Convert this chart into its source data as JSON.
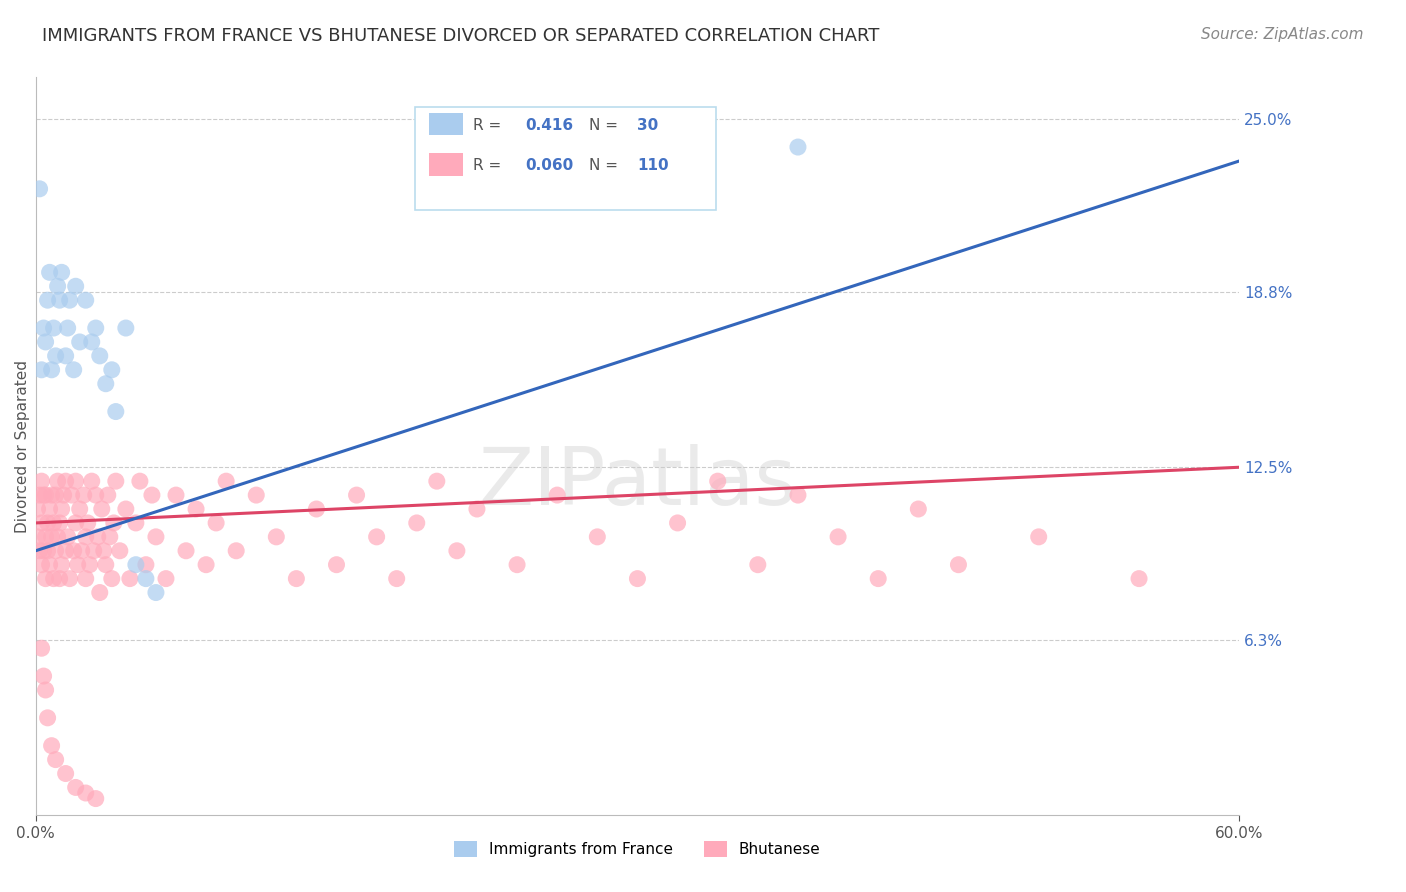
{
  "title": "IMMIGRANTS FROM FRANCE VS BHUTANESE DIVORCED OR SEPARATED CORRELATION CHART",
  "source": "Source: ZipAtlas.com",
  "ylabel": "Divorced or Separated",
  "xlim": [
    0.0,
    0.6
  ],
  "ylim": [
    0.0,
    0.265
  ],
  "ytick_positions": [
    0.063,
    0.125,
    0.188,
    0.25
  ],
  "ytick_labels": [
    "6.3%",
    "12.5%",
    "18.8%",
    "25.0%"
  ],
  "grid_color": "#cccccc",
  "background_color": "#ffffff",
  "series": [
    {
      "name": "Immigrants from France",
      "R": 0.416,
      "N": 30,
      "color": "#aaccee",
      "line_color": "#3366bb",
      "x": [
        0.002,
        0.003,
        0.004,
        0.005,
        0.006,
        0.007,
        0.008,
        0.009,
        0.01,
        0.011,
        0.012,
        0.013,
        0.015,
        0.016,
        0.017,
        0.019,
        0.02,
        0.022,
        0.025,
        0.028,
        0.03,
        0.032,
        0.035,
        0.038,
        0.04,
        0.045,
        0.05,
        0.055,
        0.06,
        0.38
      ],
      "y": [
        0.225,
        0.16,
        0.175,
        0.17,
        0.185,
        0.195,
        0.16,
        0.175,
        0.165,
        0.19,
        0.185,
        0.195,
        0.165,
        0.175,
        0.185,
        0.16,
        0.19,
        0.17,
        0.185,
        0.17,
        0.175,
        0.165,
        0.155,
        0.16,
        0.145,
        0.175,
        0.09,
        0.085,
        0.08,
        0.24
      ],
      "trend_x": [
        0.0,
        0.6
      ],
      "trend_y": [
        0.095,
        0.235
      ]
    },
    {
      "name": "Bhutanese",
      "R": 0.06,
      "N": 110,
      "color": "#ffaabb",
      "line_color": "#dd4466",
      "x": [
        0.001,
        0.001,
        0.002,
        0.002,
        0.003,
        0.003,
        0.003,
        0.004,
        0.004,
        0.005,
        0.005,
        0.005,
        0.006,
        0.006,
        0.007,
        0.007,
        0.008,
        0.008,
        0.009,
        0.009,
        0.01,
        0.01,
        0.011,
        0.011,
        0.012,
        0.012,
        0.013,
        0.013,
        0.014,
        0.015,
        0.015,
        0.016,
        0.017,
        0.018,
        0.019,
        0.02,
        0.02,
        0.021,
        0.022,
        0.023,
        0.024,
        0.025,
        0.025,
        0.026,
        0.027,
        0.028,
        0.029,
        0.03,
        0.031,
        0.032,
        0.033,
        0.034,
        0.035,
        0.036,
        0.037,
        0.038,
        0.039,
        0.04,
        0.042,
        0.045,
        0.047,
        0.05,
        0.052,
        0.055,
        0.058,
        0.06,
        0.065,
        0.07,
        0.075,
        0.08,
        0.085,
        0.09,
        0.095,
        0.1,
        0.11,
        0.12,
        0.13,
        0.14,
        0.15,
        0.16,
        0.17,
        0.18,
        0.19,
        0.2,
        0.21,
        0.22,
        0.24,
        0.26,
        0.28,
        0.3,
        0.32,
        0.34,
        0.36,
        0.38,
        0.4,
        0.42,
        0.44,
        0.46,
        0.5,
        0.55,
        0.003,
        0.004,
        0.005,
        0.006,
        0.008,
        0.01,
        0.015,
        0.02,
        0.025,
        0.03
      ],
      "y": [
        0.11,
        0.1,
        0.115,
        0.095,
        0.105,
        0.09,
        0.12,
        0.095,
        0.115,
        0.1,
        0.085,
        0.115,
        0.105,
        0.095,
        0.11,
        0.09,
        0.1,
        0.115,
        0.085,
        0.105,
        0.115,
        0.095,
        0.1,
        0.12,
        0.085,
        0.105,
        0.11,
        0.09,
        0.115,
        0.095,
        0.12,
        0.1,
        0.085,
        0.115,
        0.095,
        0.105,
        0.12,
        0.09,
        0.11,
        0.095,
        0.115,
        0.1,
        0.085,
        0.105,
        0.09,
        0.12,
        0.095,
        0.115,
        0.1,
        0.08,
        0.11,
        0.095,
        0.09,
        0.115,
        0.1,
        0.085,
        0.105,
        0.12,
        0.095,
        0.11,
        0.085,
        0.105,
        0.12,
        0.09,
        0.115,
        0.1,
        0.085,
        0.115,
        0.095,
        0.11,
        0.09,
        0.105,
        0.12,
        0.095,
        0.115,
        0.1,
        0.085,
        0.11,
        0.09,
        0.115,
        0.1,
        0.085,
        0.105,
        0.12,
        0.095,
        0.11,
        0.09,
        0.115,
        0.1,
        0.085,
        0.105,
        0.12,
        0.09,
        0.115,
        0.1,
        0.085,
        0.11,
        0.09,
        0.1,
        0.085,
        0.06,
        0.05,
        0.045,
        0.035,
        0.025,
        0.02,
        0.015,
        0.01,
        0.008,
        0.006
      ],
      "trend_x": [
        0.0,
        0.6
      ],
      "trend_y": [
        0.105,
        0.125
      ]
    }
  ],
  "title_fontsize": 13,
  "axis_fontsize": 11,
  "tick_fontsize": 11,
  "source_fontsize": 11
}
